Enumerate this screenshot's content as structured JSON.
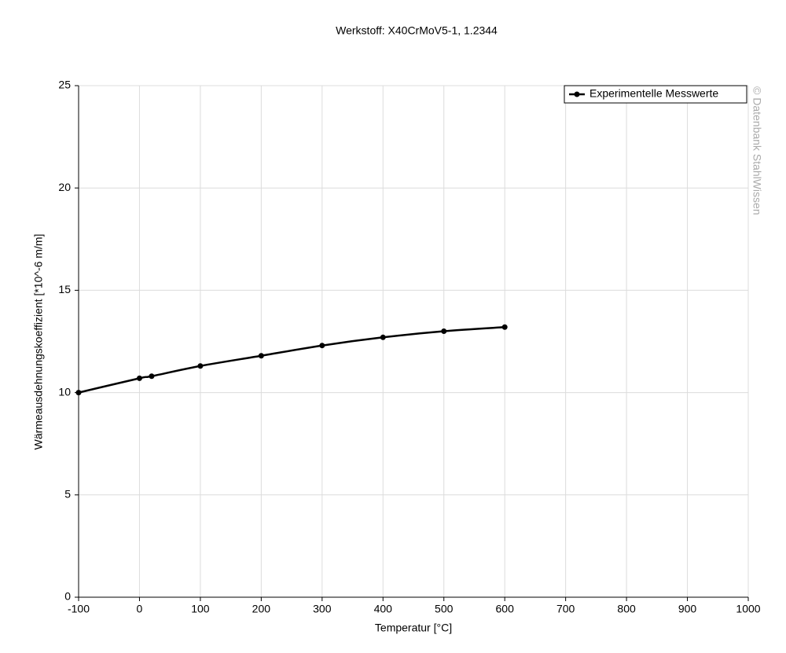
{
  "chart_data": {
    "type": "line",
    "title": "Werkstoff: X40CrMoV5-1, 1.2344",
    "xlabel": "Temperatur [°C]",
    "ylabel": "Wärmeausdehnungskoeffizient [*10^-6 m/m]",
    "watermark": "© Datenbank StahlWissen",
    "x": [
      -100,
      0,
      20,
      100,
      200,
      300,
      400,
      500,
      600
    ],
    "series": [
      {
        "name": "Experimentelle Messwerte",
        "color": "#000000",
        "values": [
          10.0,
          10.7,
          10.8,
          11.3,
          11.8,
          12.3,
          12.7,
          13.0,
          13.2
        ]
      }
    ],
    "xlim": [
      -100,
      1000
    ],
    "xticks": [
      -100,
      0,
      100,
      200,
      300,
      400,
      500,
      600,
      700,
      800,
      900,
      1000
    ],
    "ylim": [
      0,
      25
    ],
    "yticks": [
      0,
      5,
      10,
      15,
      20,
      25
    ],
    "grid": true,
    "legend": "upper right"
  }
}
